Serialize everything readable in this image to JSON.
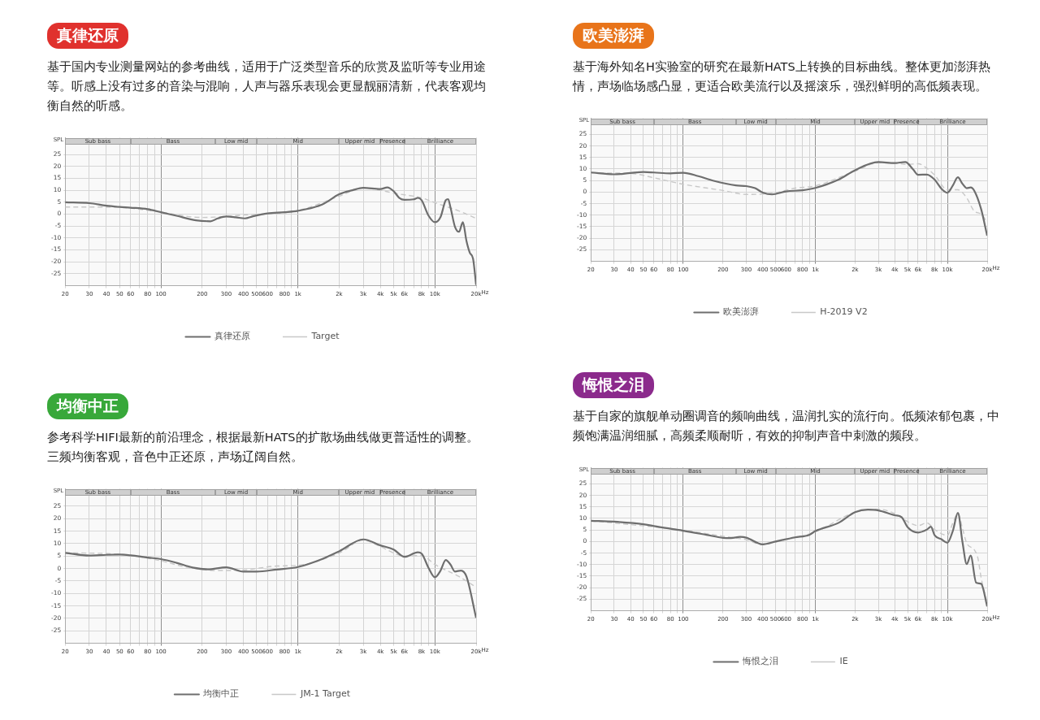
{
  "chart_data": [
    {
      "type": "line",
      "title": "真律还原",
      "subtitle": "基于国内专业测量网站的参考曲线，适用于广泛类型音乐的欣赏及监听等专业用途等。听感上没有过多的音染与混响，人声与器乐表现会更显靓丽清新，代表客观均衡自然的听感。",
      "xlabel": "Hz",
      "ylabel": "SPL",
      "log": "x",
      "xlim": [
        20,
        20000
      ],
      "ylim": [
        -30,
        32
      ],
      "xticks": [
        20,
        30,
        40,
        50,
        60,
        {
          "value": 70,
          "label": null
        },
        80,
        {
          "value": 90,
          "label": null
        },
        100,
        200,
        300,
        400,
        500,
        600,
        {
          "value": 700,
          "label": null
        },
        800,
        {
          "value": 900,
          "label": null
        },
        {
          "value": 1000,
          "label": "1k"
        },
        {
          "value": 2000,
          "label": "2k"
        },
        {
          "value": 3000,
          "label": "3k"
        },
        {
          "value": 4000,
          "label": "4k"
        },
        {
          "value": 5000,
          "label": "5k"
        },
        {
          "value": 6000,
          "label": "6k"
        },
        {
          "value": 7000,
          "label": null
        },
        {
          "value": 8000,
          "label": "8k"
        },
        {
          "value": 9000,
          "label": null
        },
        {
          "value": 10000,
          "label": "10k"
        },
        {
          "value": 20000,
          "label": "20k"
        }
      ],
      "yticks": [
        -25,
        -20,
        -15,
        -10,
        -5,
        0,
        5,
        10,
        15,
        20,
        25
      ],
      "grid": true,
      "legend": "bottom",
      "marker": "none",
      "bands": [
        {
          "axis": "x",
          "from": 20,
          "to": 60,
          "label": "Sub bass",
          "color": "#cfcfcf"
        },
        {
          "axis": "x",
          "from": 60,
          "to": 250,
          "label": "Bass",
          "color": "#cfcfcf"
        },
        {
          "axis": "x",
          "from": 250,
          "to": 500,
          "label": "Low mid",
          "color": "#cfcfcf"
        },
        {
          "axis": "x",
          "from": 500,
          "to": 2000,
          "label": "Mid",
          "color": "#cfcfcf"
        },
        {
          "axis": "x",
          "from": 2000,
          "to": 4000,
          "label": "Upper mid",
          "color": "#cfcfcf"
        },
        {
          "axis": "x",
          "from": 4000,
          "to": 6000,
          "label": "Presence",
          "color": "#cfcfcf"
        },
        {
          "axis": "x",
          "from": 6000,
          "to": 20000,
          "label": "Brilliance",
          "color": "#cfcfcf"
        }
      ],
      "series": [
        {
          "name": "真律还原",
          "color": "#6e6e6e",
          "line_style": "solid",
          "x": [
            20,
            30,
            40,
            50,
            60,
            80,
            100,
            130,
            180,
            230,
            260,
            300,
            350,
            410,
            470,
            600,
            800,
            1000,
            1500,
            2000,
            2500,
            3000,
            4000,
            4500,
            5000,
            5500,
            6000,
            7000,
            7500,
            8000,
            9000,
            10000,
            11000,
            12000,
            12500,
            13000,
            14000,
            15000,
            16000,
            17000,
            18000,
            19000,
            20000
          ],
          "values": [
            5,
            4.6,
            3.5,
            3,
            2.7,
            2.1,
            0.8,
            -0.7,
            -2.6,
            -3,
            -1.8,
            -1,
            -1.3,
            -1.8,
            -0.9,
            0.3,
            0.8,
            1.4,
            4,
            8.3,
            10,
            11,
            10.5,
            11.2,
            9.6,
            6.8,
            6,
            6.2,
            6.8,
            5.8,
            -0.7,
            -3.4,
            -1.2,
            5.8,
            6.3,
            2.8,
            -5.2,
            -7.4,
            -3.4,
            -11.2,
            -16.2,
            -18.7,
            -29.7
          ]
        },
        {
          "name": "Target",
          "color": "#c8c8c8",
          "line_style": "dashed",
          "x": [
            20,
            40,
            60,
            100,
            200,
            400,
            1000,
            2000,
            3000,
            4000,
            5000,
            8000,
            10000,
            15000,
            20000
          ],
          "values": [
            3,
            3,
            2.5,
            0.8,
            -1.4,
            -0.4,
            1.5,
            7.5,
            11,
            10,
            8.8,
            6.8,
            4.8,
            1.3,
            -1.8
          ]
        }
      ]
    },
    {
      "type": "line",
      "title": "欧美澎湃",
      "subtitle": "基于海外知名H实验室的研究在最新HATS上转换的目标曲线。整体更加澎湃热情，声场临场感凸显，更适合欧美流行以及摇滚乐，强烈鲜明的高低频表现。",
      "xlabel": "Hz",
      "ylabel": "SPL",
      "log": "x",
      "xlim": [
        20,
        20000
      ],
      "ylim": [
        -30,
        32
      ],
      "xticks": [
        20,
        30,
        40,
        50,
        60,
        {
          "value": 70,
          "label": null
        },
        80,
        {
          "value": 90,
          "label": null
        },
        100,
        200,
        300,
        400,
        500,
        600,
        {
          "value": 700,
          "label": null
        },
        800,
        {
          "value": 900,
          "label": null
        },
        {
          "value": 1000,
          "label": "1k"
        },
        {
          "value": 2000,
          "label": "2k"
        },
        {
          "value": 3000,
          "label": "3k"
        },
        {
          "value": 4000,
          "label": "4k"
        },
        {
          "value": 5000,
          "label": "5k"
        },
        {
          "value": 6000,
          "label": "6k"
        },
        {
          "value": 7000,
          "label": null
        },
        {
          "value": 8000,
          "label": "8k"
        },
        {
          "value": 9000,
          "label": null
        },
        {
          "value": 10000,
          "label": "10k"
        },
        {
          "value": 20000,
          "label": "20k"
        }
      ],
      "yticks": [
        -25,
        -20,
        -15,
        -10,
        -5,
        0,
        5,
        10,
        15,
        20,
        25
      ],
      "grid": true,
      "legend": "bottom",
      "marker": "none",
      "bands": [
        {
          "axis": "x",
          "from": 20,
          "to": 60,
          "label": "Sub bass",
          "color": "#cfcfcf"
        },
        {
          "axis": "x",
          "from": 60,
          "to": 250,
          "label": "Bass",
          "color": "#cfcfcf"
        },
        {
          "axis": "x",
          "from": 250,
          "to": 500,
          "label": "Low mid",
          "color": "#cfcfcf"
        },
        {
          "axis": "x",
          "from": 500,
          "to": 2000,
          "label": "Mid",
          "color": "#cfcfcf"
        },
        {
          "axis": "x",
          "from": 2000,
          "to": 4000,
          "label": "Upper mid",
          "color": "#cfcfcf"
        },
        {
          "axis": "x",
          "from": 4000,
          "to": 6000,
          "label": "Presence",
          "color": "#cfcfcf"
        },
        {
          "axis": "x",
          "from": 6000,
          "to": 20000,
          "label": "Brilliance",
          "color": "#cfcfcf"
        }
      ],
      "series": [
        {
          "name": "欧美澎湃",
          "color": "#6e6e6e",
          "line_style": "solid",
          "x": [
            20,
            30,
            40,
            50,
            60,
            80,
            100,
            130,
            170,
            250,
            300,
            350,
            400,
            470,
            600,
            800,
            1000,
            1500,
            2000,
            3000,
            4000,
            4800,
            5500,
            6000,
            7000,
            8000,
            9000,
            10000,
            11000,
            12000,
            13000,
            14000,
            15000,
            16000,
            18000,
            20000
          ],
          "values": [
            8.5,
            7.7,
            8.3,
            8.7,
            8.5,
            8.1,
            8.4,
            6.9,
            4.9,
            2.9,
            2.6,
            1.7,
            -0.2,
            -1,
            0.3,
            0.8,
            1.8,
            5.4,
            9.5,
            13,
            12.6,
            13,
            9.8,
            7.5,
            7.6,
            5.4,
            1.5,
            -0.3,
            2.9,
            6.4,
            3.6,
            1.7,
            2,
            0.5,
            -7.4,
            -18.9
          ]
        },
        {
          "name": "H-2019 V2",
          "color": "#c8c8c8",
          "line_style": "dashed",
          "x": [
            20,
            40,
            60,
            100,
            200,
            300,
            500,
            700,
            1000,
            2000,
            3000,
            4000,
            5000,
            6000,
            7000,
            8000,
            10000,
            12000,
            14000,
            16000,
            18000,
            20000
          ],
          "values": [
            8.3,
            8.1,
            6.2,
            3.4,
            0.7,
            -1,
            -0.3,
            1.7,
            2.7,
            9.1,
            12.7,
            12.5,
            12,
            12.3,
            10.3,
            7.4,
            1,
            1,
            -2.5,
            -8.3,
            -9.5,
            -13.2
          ]
        }
      ]
    },
    {
      "type": "line",
      "title": "均衡中正",
      "subtitle": "参考科学HIFI最新的前沿理念，根据最新HATS的扩散场曲线做更普适性的调整。三频均衡客观，音色中正还原，声场辽阔自然。",
      "xlabel": "Hz",
      "ylabel": "SPL",
      "log": "x",
      "xlim": [
        20,
        20000
      ],
      "ylim": [
        -30,
        32
      ],
      "xticks": [
        20,
        30,
        40,
        50,
        60,
        {
          "value": 70,
          "label": null
        },
        80,
        {
          "value": 90,
          "label": null
        },
        100,
        200,
        300,
        400,
        500,
        600,
        {
          "value": 700,
          "label": null
        },
        800,
        {
          "value": 900,
          "label": null
        },
        {
          "value": 1000,
          "label": "1k"
        },
        {
          "value": 2000,
          "label": "2k"
        },
        {
          "value": 3000,
          "label": "3k"
        },
        {
          "value": 4000,
          "label": "4k"
        },
        {
          "value": 5000,
          "label": "5k"
        },
        {
          "value": 6000,
          "label": "6k"
        },
        {
          "value": 7000,
          "label": null
        },
        {
          "value": 8000,
          "label": "8k"
        },
        {
          "value": 9000,
          "label": null
        },
        {
          "value": 10000,
          "label": "10k"
        },
        {
          "value": 20000,
          "label": "20k"
        }
      ],
      "yticks": [
        -25,
        -20,
        -15,
        -10,
        -5,
        0,
        5,
        10,
        15,
        20,
        25
      ],
      "grid": true,
      "legend": "bottom",
      "marker": "none",
      "bands": [
        {
          "axis": "x",
          "from": 20,
          "to": 60,
          "label": "Sub bass",
          "color": "#cfcfcf"
        },
        {
          "axis": "x",
          "from": 60,
          "to": 250,
          "label": "Bass",
          "color": "#cfcfcf"
        },
        {
          "axis": "x",
          "from": 250,
          "to": 500,
          "label": "Low mid",
          "color": "#cfcfcf"
        },
        {
          "axis": "x",
          "from": 500,
          "to": 2000,
          "label": "Mid",
          "color": "#cfcfcf"
        },
        {
          "axis": "x",
          "from": 2000,
          "to": 4000,
          "label": "Upper mid",
          "color": "#cfcfcf"
        },
        {
          "axis": "x",
          "from": 4000,
          "to": 6000,
          "label": "Presence",
          "color": "#cfcfcf"
        },
        {
          "axis": "x",
          "from": 6000,
          "to": 20000,
          "label": "Brilliance",
          "color": "#cfcfcf"
        }
      ],
      "series": [
        {
          "name": "均衡中正",
          "color": "#6e6e6e",
          "line_style": "solid",
          "x": [
            20,
            30,
            40,
            50,
            60,
            80,
            100,
            130,
            170,
            220,
            300,
            400,
            500,
            700,
            1000,
            1500,
            2000,
            3000,
            4000,
            5000,
            6000,
            7500,
            8000,
            9000,
            10000,
            11000,
            12000,
            13000,
            14000,
            15500,
            17000,
            20000
          ],
          "values": [
            6.3,
            5.2,
            5.5,
            5.6,
            5.3,
            4.4,
            3.8,
            2.3,
            0.4,
            -0.3,
            0.5,
            -1.2,
            -1.2,
            -0.4,
            0.6,
            3.8,
            6.9,
            11.7,
            9.3,
            7.6,
            4.7,
            6.5,
            6,
            0.2,
            -3.5,
            -0.8,
            3.4,
            1.6,
            -1.2,
            -0.8,
            -3.2,
            -19.8
          ]
        },
        {
          "name": "JM-1 Target",
          "color": "#c8c8c8",
          "line_style": "dashed",
          "x": [
            20,
            40,
            60,
            100,
            150,
            250,
            400,
            700,
            1000,
            2000,
            3000,
            4000,
            6000,
            8000,
            10000,
            15000,
            20000
          ],
          "values": [
            6.3,
            6,
            5.3,
            3.1,
            0.7,
            -0.8,
            -0.6,
            1,
            1.3,
            6.2,
            11.4,
            8.8,
            5,
            5.2,
            1.6,
            -3.2,
            -7.5
          ]
        }
      ]
    },
    {
      "type": "line",
      "title": "悔恨之泪",
      "subtitle": "基于自家的旗舰单动圈调音的频响曲线，温润扎实的流行向。低频浓郁包裹，中频饱满温润细腻，高频柔顺耐听，有效的抑制声音中刺激的频段。",
      "xlabel": "Hz",
      "ylabel": "SPL",
      "log": "x",
      "xlim": [
        20,
        20000
      ],
      "ylim": [
        -30,
        32
      ],
      "xticks": [
        20,
        30,
        40,
        50,
        60,
        {
          "value": 70,
          "label": null
        },
        80,
        {
          "value": 90,
          "label": null
        },
        100,
        200,
        300,
        400,
        500,
        600,
        {
          "value": 700,
          "label": null
        },
        800,
        {
          "value": 900,
          "label": null
        },
        {
          "value": 1000,
          "label": "1k"
        },
        {
          "value": 2000,
          "label": "2k"
        },
        {
          "value": 3000,
          "label": "3k"
        },
        {
          "value": 4000,
          "label": "4k"
        },
        {
          "value": 5000,
          "label": "5k"
        },
        {
          "value": 6000,
          "label": "6k"
        },
        {
          "value": 7000,
          "label": null
        },
        {
          "value": 8000,
          "label": "8k"
        },
        {
          "value": 9000,
          "label": null
        },
        {
          "value": 10000,
          "label": "10k"
        },
        {
          "value": 20000,
          "label": "20k"
        }
      ],
      "yticks": [
        -25,
        -20,
        -15,
        -10,
        -5,
        0,
        5,
        10,
        15,
        20,
        25
      ],
      "grid": true,
      "legend": "bottom",
      "marker": "none",
      "bands": [
        {
          "axis": "x",
          "from": 20,
          "to": 60,
          "label": "Sub bass",
          "color": "#cfcfcf"
        },
        {
          "axis": "x",
          "from": 60,
          "to": 250,
          "label": "Bass",
          "color": "#cfcfcf"
        },
        {
          "axis": "x",
          "from": 250,
          "to": 500,
          "label": "Low mid",
          "color": "#cfcfcf"
        },
        {
          "axis": "x",
          "from": 500,
          "to": 2000,
          "label": "Mid",
          "color": "#cfcfcf"
        },
        {
          "axis": "x",
          "from": 2000,
          "to": 4000,
          "label": "Upper mid",
          "color": "#cfcfcf"
        },
        {
          "axis": "x",
          "from": 4000,
          "to": 6000,
          "label": "Presence",
          "color": "#cfcfcf"
        },
        {
          "axis": "x",
          "from": 6000,
          "to": 20000,
          "label": "Brilliance",
          "color": "#cfcfcf"
        }
      ],
      "series": [
        {
          "name": "悔恨之泪",
          "color": "#6e6e6e",
          "line_style": "solid",
          "x": [
            20,
            30,
            50,
            60,
            100,
            150,
            200,
            230,
            270,
            300,
            400,
            500,
            700,
            900,
            1000,
            1500,
            2000,
            2500,
            3000,
            4000,
            4500,
            5000,
            6000,
            7000,
            7500,
            8000,
            9000,
            10000,
            11000,
            12000,
            13000,
            14000,
            15000,
            16500,
            18000,
            20000
          ],
          "values": [
            9,
            8.6,
            7.5,
            6.7,
            4.7,
            2.9,
            1.6,
            1.5,
            2,
            1.7,
            -1.2,
            0,
            1.8,
            2.9,
            4.5,
            8.1,
            12.7,
            13.8,
            13.5,
            11.4,
            10.6,
            6.2,
            3.9,
            5.2,
            6.4,
            2.7,
            1,
            -0.5,
            4.7,
            12.4,
            -0.2,
            -9.8,
            -6.1,
            -17.8,
            -18.3,
            -28.1
          ]
        },
        {
          "name": "IE",
          "color": "#c8c8c8",
          "line_style": "dashed",
          "x": [
            20,
            100,
            200,
            300,
            400,
            500,
            1000,
            2000,
            3000,
            4000,
            5000,
            6000,
            7000,
            8000,
            10000,
            11000,
            12000,
            13000,
            14000,
            16000,
            17000,
            18000,
            20000
          ],
          "values": [
            9,
            4.9,
            2.3,
            0.8,
            -1.4,
            -0.2,
            4.2,
            12.7,
            14,
            12.1,
            8.6,
            6.9,
            8.1,
            5.2,
            2.7,
            8.1,
            12.1,
            5.7,
            -0.7,
            -3.6,
            -7.1,
            -15.7,
            -26.7
          ]
        }
      ]
    }
  ]
}
